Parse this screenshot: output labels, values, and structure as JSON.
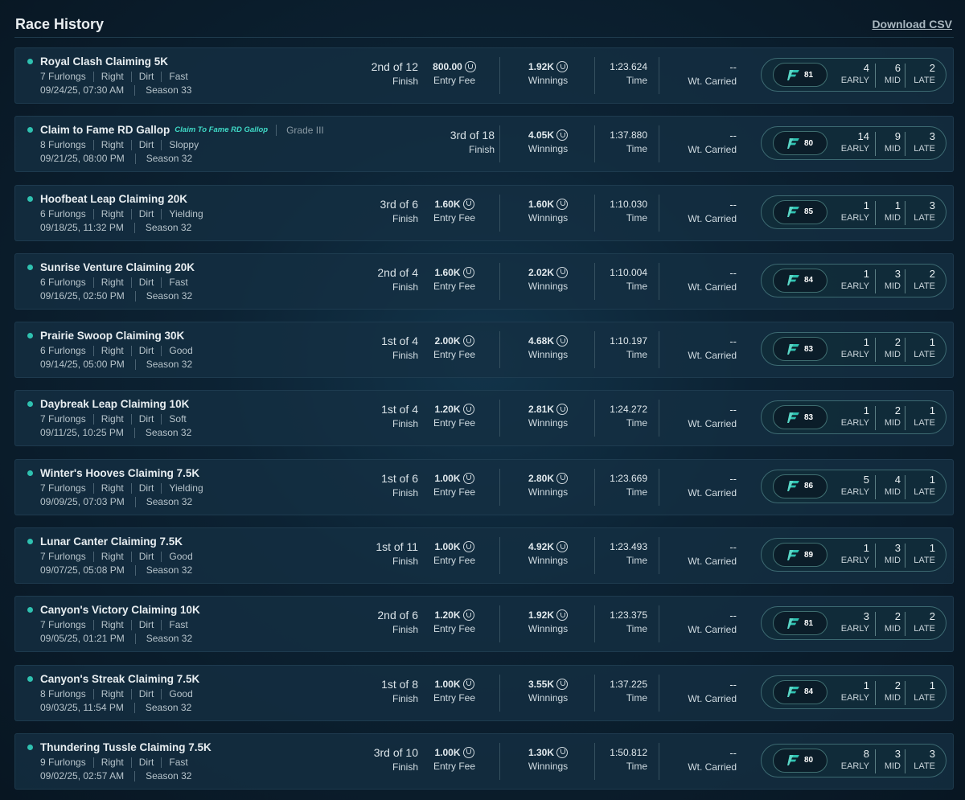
{
  "header": {
    "title": "Race History",
    "download_label": "Download CSV"
  },
  "labels": {
    "finish": "Finish",
    "entry_fee": "Entry Fee",
    "winnings": "Winnings",
    "time": "Time",
    "wt_carried": "Wt. Carried",
    "early": "EARLY",
    "mid": "MID",
    "late": "LATE"
  },
  "icons": {
    "status": "status-dot-icon",
    "currency": "coin-icon",
    "rating": "speed-rating-icon"
  },
  "colors": {
    "accent": "#2fc1b0",
    "sponsor": "#3fd9c6"
  },
  "races": [
    {
      "name": "Royal Clash Claiming 5K",
      "sponsor": "",
      "grade": "",
      "distance": "7 Furlongs",
      "direction": "Right",
      "surface": "Dirt",
      "condition": "Fast",
      "datetime": "09/24/25, 07:30 AM",
      "season": "Season 33",
      "place": "2nd of 12",
      "entry_fee": "800.00",
      "winnings": "1.92K",
      "time": "1:23.624",
      "wt": "--",
      "rating": "81",
      "early": "4",
      "mid": "6",
      "late": "2"
    },
    {
      "name": "Claim to Fame RD Gallop",
      "sponsor": "Claim To Fame RD Gallop",
      "grade": "Grade III",
      "distance": "8 Furlongs",
      "direction": "Right",
      "surface": "Dirt",
      "condition": "Sloppy",
      "datetime": "09/21/25, 08:00 PM",
      "season": "Season 32",
      "place": "3rd of 18",
      "entry_fee": "",
      "winnings": "4.05K",
      "time": "1:37.880",
      "wt": "--",
      "rating": "80",
      "early": "14",
      "mid": "9",
      "late": "3"
    },
    {
      "name": "Hoofbeat Leap Claiming 20K",
      "sponsor": "",
      "grade": "",
      "distance": "6 Furlongs",
      "direction": "Right",
      "surface": "Dirt",
      "condition": "Yielding",
      "datetime": "09/18/25, 11:32 PM",
      "season": "Season 32",
      "place": "3rd of 6",
      "entry_fee": "1.60K",
      "winnings": "1.60K",
      "time": "1:10.030",
      "wt": "--",
      "rating": "85",
      "early": "1",
      "mid": "1",
      "late": "3"
    },
    {
      "name": "Sunrise Venture Claiming 20K",
      "sponsor": "",
      "grade": "",
      "distance": "6 Furlongs",
      "direction": "Right",
      "surface": "Dirt",
      "condition": "Fast",
      "datetime": "09/16/25, 02:50 PM",
      "season": "Season 32",
      "place": "2nd of 4",
      "entry_fee": "1.60K",
      "winnings": "2.02K",
      "time": "1:10.004",
      "wt": "--",
      "rating": "84",
      "early": "1",
      "mid": "3",
      "late": "2"
    },
    {
      "name": "Prairie Swoop Claiming 30K",
      "sponsor": "",
      "grade": "",
      "distance": "6 Furlongs",
      "direction": "Right",
      "surface": "Dirt",
      "condition": "Good",
      "datetime": "09/14/25, 05:00 PM",
      "season": "Season 32",
      "place": "1st of 4",
      "entry_fee": "2.00K",
      "winnings": "4.68K",
      "time": "1:10.197",
      "wt": "--",
      "rating": "83",
      "early": "1",
      "mid": "2",
      "late": "1"
    },
    {
      "name": "Daybreak Leap Claiming 10K",
      "sponsor": "",
      "grade": "",
      "distance": "7 Furlongs",
      "direction": "Right",
      "surface": "Dirt",
      "condition": "Soft",
      "datetime": "09/11/25, 10:25 PM",
      "season": "Season 32",
      "place": "1st of 4",
      "entry_fee": "1.20K",
      "winnings": "2.81K",
      "time": "1:24.272",
      "wt": "--",
      "rating": "83",
      "early": "1",
      "mid": "2",
      "late": "1"
    },
    {
      "name": "Winter's Hooves Claiming 7.5K",
      "sponsor": "",
      "grade": "",
      "distance": "7 Furlongs",
      "direction": "Right",
      "surface": "Dirt",
      "condition": "Yielding",
      "datetime": "09/09/25, 07:03 PM",
      "season": "Season 32",
      "place": "1st of 6",
      "entry_fee": "1.00K",
      "winnings": "2.80K",
      "time": "1:23.669",
      "wt": "--",
      "rating": "86",
      "early": "5",
      "mid": "4",
      "late": "1"
    },
    {
      "name": "Lunar Canter Claiming 7.5K",
      "sponsor": "",
      "grade": "",
      "distance": "7 Furlongs",
      "direction": "Right",
      "surface": "Dirt",
      "condition": "Good",
      "datetime": "09/07/25, 05:08 PM",
      "season": "Season 32",
      "place": "1st of 11",
      "entry_fee": "1.00K",
      "winnings": "4.92K",
      "time": "1:23.493",
      "wt": "--",
      "rating": "89",
      "early": "1",
      "mid": "3",
      "late": "1"
    },
    {
      "name": "Canyon's Victory Claiming 10K",
      "sponsor": "",
      "grade": "",
      "distance": "7 Furlongs",
      "direction": "Right",
      "surface": "Dirt",
      "condition": "Fast",
      "datetime": "09/05/25, 01:21 PM",
      "season": "Season 32",
      "place": "2nd of 6",
      "entry_fee": "1.20K",
      "winnings": "1.92K",
      "time": "1:23.375",
      "wt": "--",
      "rating": "81",
      "early": "3",
      "mid": "2",
      "late": "2"
    },
    {
      "name": "Canyon's Streak Claiming 7.5K",
      "sponsor": "",
      "grade": "",
      "distance": "8 Furlongs",
      "direction": "Right",
      "surface": "Dirt",
      "condition": "Good",
      "datetime": "09/03/25, 11:54 PM",
      "season": "Season 32",
      "place": "1st of 8",
      "entry_fee": "1.00K",
      "winnings": "3.55K",
      "time": "1:37.225",
      "wt": "--",
      "rating": "84",
      "early": "1",
      "mid": "2",
      "late": "1"
    },
    {
      "name": "Thundering Tussle Claiming 7.5K",
      "sponsor": "",
      "grade": "",
      "distance": "9 Furlongs",
      "direction": "Right",
      "surface": "Dirt",
      "condition": "Fast",
      "datetime": "09/02/25, 02:57 AM",
      "season": "Season 32",
      "place": "3rd of 10",
      "entry_fee": "1.00K",
      "winnings": "1.30K",
      "time": "1:50.812",
      "wt": "--",
      "rating": "80",
      "early": "8",
      "mid": "3",
      "late": "3"
    }
  ]
}
